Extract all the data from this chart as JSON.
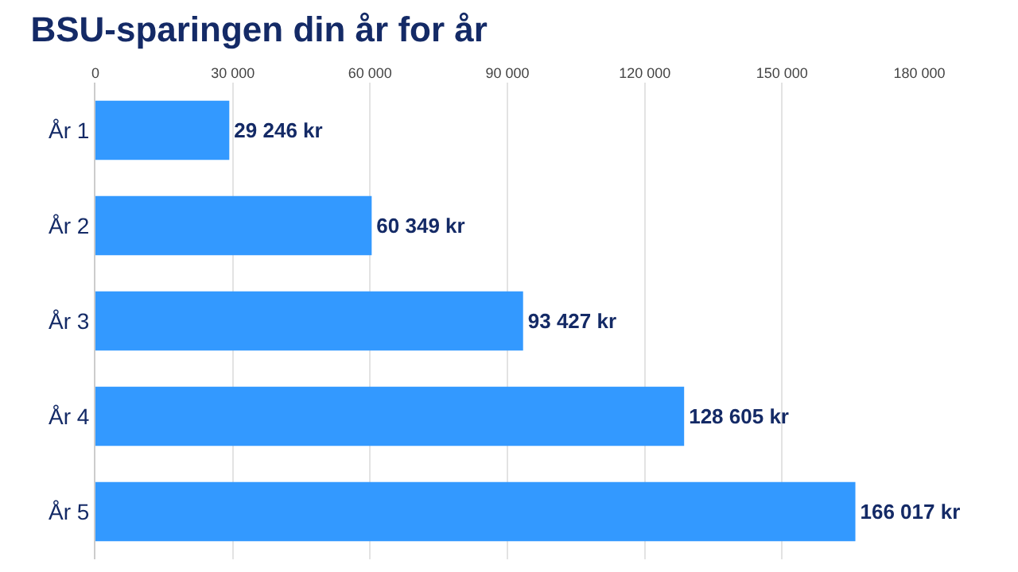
{
  "chart_data": {
    "type": "bar",
    "title": "BSU-sparingen din år for år",
    "orientation": "horizontal",
    "categories": [
      "År 1",
      "År 2",
      "År 3",
      "År 4",
      "År 5"
    ],
    "values": [
      29246,
      60349,
      93427,
      128605,
      166017
    ],
    "value_labels": [
      "29 246 kr",
      "60 349 kr",
      "93 427 kr",
      "128 605 kr",
      "166 017 kr"
    ],
    "color": "#3399ff",
    "xlim": [
      0,
      180000
    ],
    "xticks": [
      0,
      {
        "value": 30000,
        "label": "30 000"
      },
      {
        "value": 60000,
        "label": "60 000"
      },
      {
        "value": 90000,
        "label": "90 000"
      },
      {
        "value": 120000,
        "label": "120 000"
      },
      {
        "value": 150000,
        "label": "150 000"
      },
      {
        "value": 180000,
        "label": "180 000"
      }
    ],
    "grid": "x",
    "legend": false
  }
}
